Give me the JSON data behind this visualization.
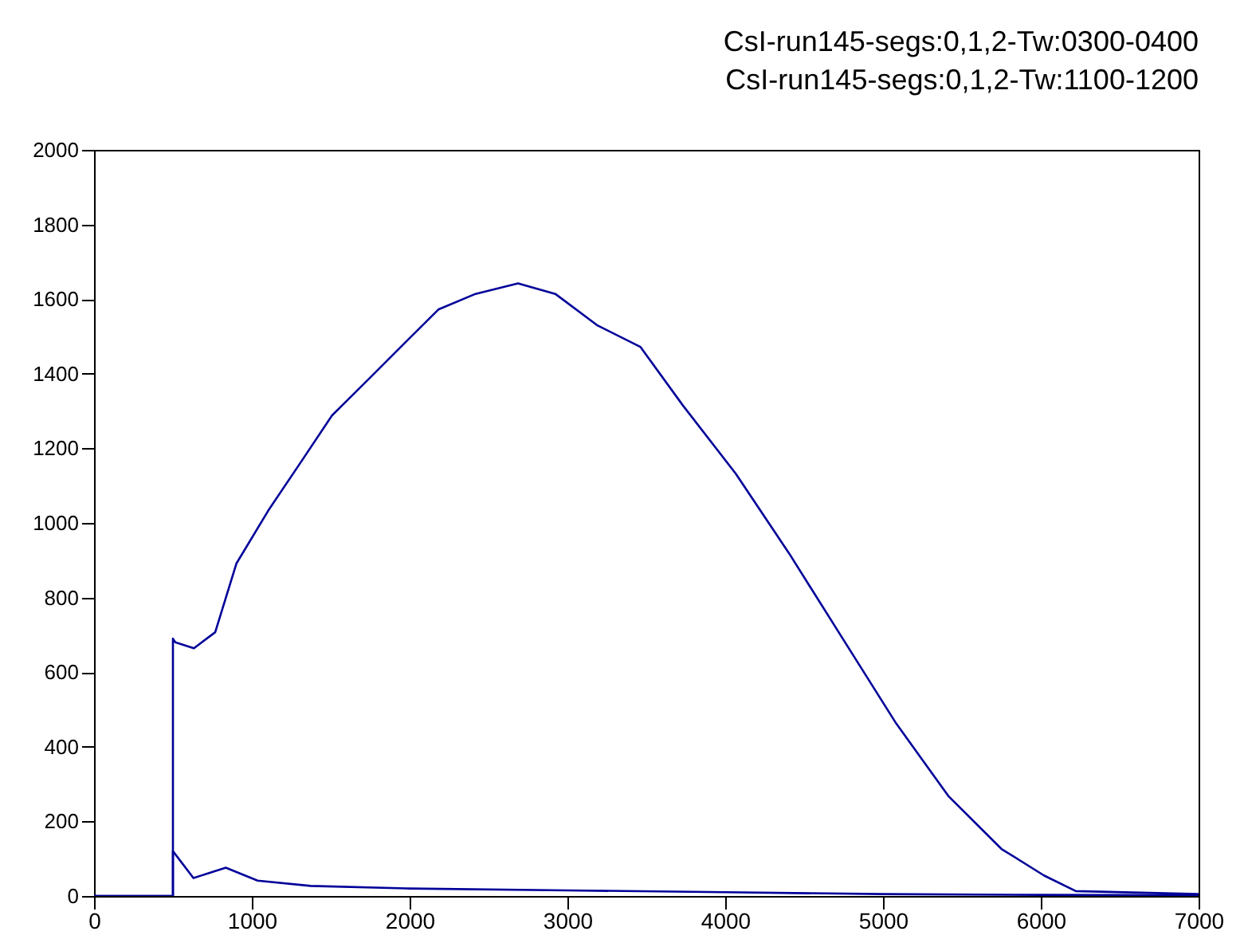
{
  "chart_data": {
    "type": "line",
    "title": "CsI-run145-segs:0,1,2-Tw:0300-0400",
    "subtitle": "CsI-run145-segs:0,1,2-Tw:1100-1200",
    "series": [
      {
        "color": "#000099",
        "x": [
          0,
          500,
          500,
          515,
          633,
          768,
          902,
          1104,
          1306,
          1508,
          1744,
          1980,
          2182,
          2418,
          2687,
          2923,
          3192,
          3462,
          3730,
          4067,
          4404,
          4740,
          5078,
          5414,
          5751,
          6020,
          6222,
          7000
        ],
        "values": [
          0,
          0,
          690,
          680,
          664,
          707,
          891,
          1033,
          1160,
          1288,
          1387,
          1487,
          1572,
          1614,
          1642,
          1614,
          1529,
          1472,
          1316,
          1132,
          919,
          693,
          466,
          268,
          126,
          55,
          13,
          5
        ]
      },
      {
        "color": "#000099",
        "x": [
          0,
          500,
          500,
          515,
          630,
          835,
          1037,
          1374,
          2000,
          3000,
          4000,
          5000,
          6000,
          7000
        ],
        "values": [
          0,
          0,
          120,
          112,
          48,
          76,
          41,
          27,
          20,
          15,
          10,
          5,
          3,
          2
        ]
      }
    ],
    "xlim": [
      0,
      7000
    ],
    "xticks": [
      0,
      1000,
      2000,
      3000,
      4000,
      5000,
      6000,
      7000
    ],
    "ylim": [
      0,
      2000
    ],
    "yticks": [
      0,
      200,
      400,
      600,
      800,
      1000,
      1200,
      1400,
      1600,
      1800,
      2000
    ]
  }
}
